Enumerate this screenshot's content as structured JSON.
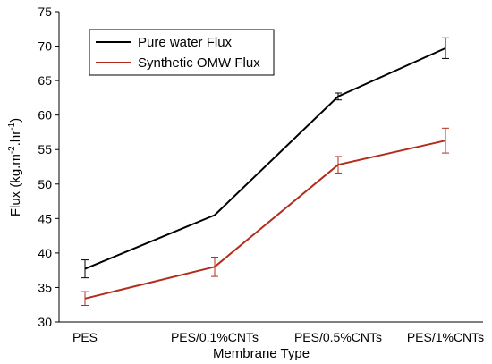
{
  "chart_data": {
    "type": "line",
    "categories": [
      "PES",
      "PES/0.1%CNTs",
      "PES/0.5%CNTs",
      "PES/1%CNTs"
    ],
    "series": [
      {
        "name": "Pure water Flux",
        "color": "#000000",
        "values": [
          37.7,
          45.5,
          62.7,
          69.7
        ],
        "errors": [
          1.3,
          0,
          0.5,
          1.5
        ]
      },
      {
        "name": "Synthetic OMW Flux",
        "color": "#b22e1c",
        "values": [
          33.4,
          38.0,
          52.8,
          56.3
        ],
        "errors": [
          1.0,
          1.4,
          1.2,
          1.8
        ]
      }
    ],
    "xlabel": "Membrane Type",
    "ylabel": {
      "base": "Flux (kg.m",
      "exp1": "-2",
      "mid": ".hr",
      "exp2": "-1",
      "end": ")"
    },
    "ylim": [
      30,
      75
    ],
    "yticks": [
      30,
      35,
      40,
      45,
      50,
      55,
      60,
      65,
      70,
      75
    ],
    "legend_position": "top-left",
    "grid": false
  }
}
